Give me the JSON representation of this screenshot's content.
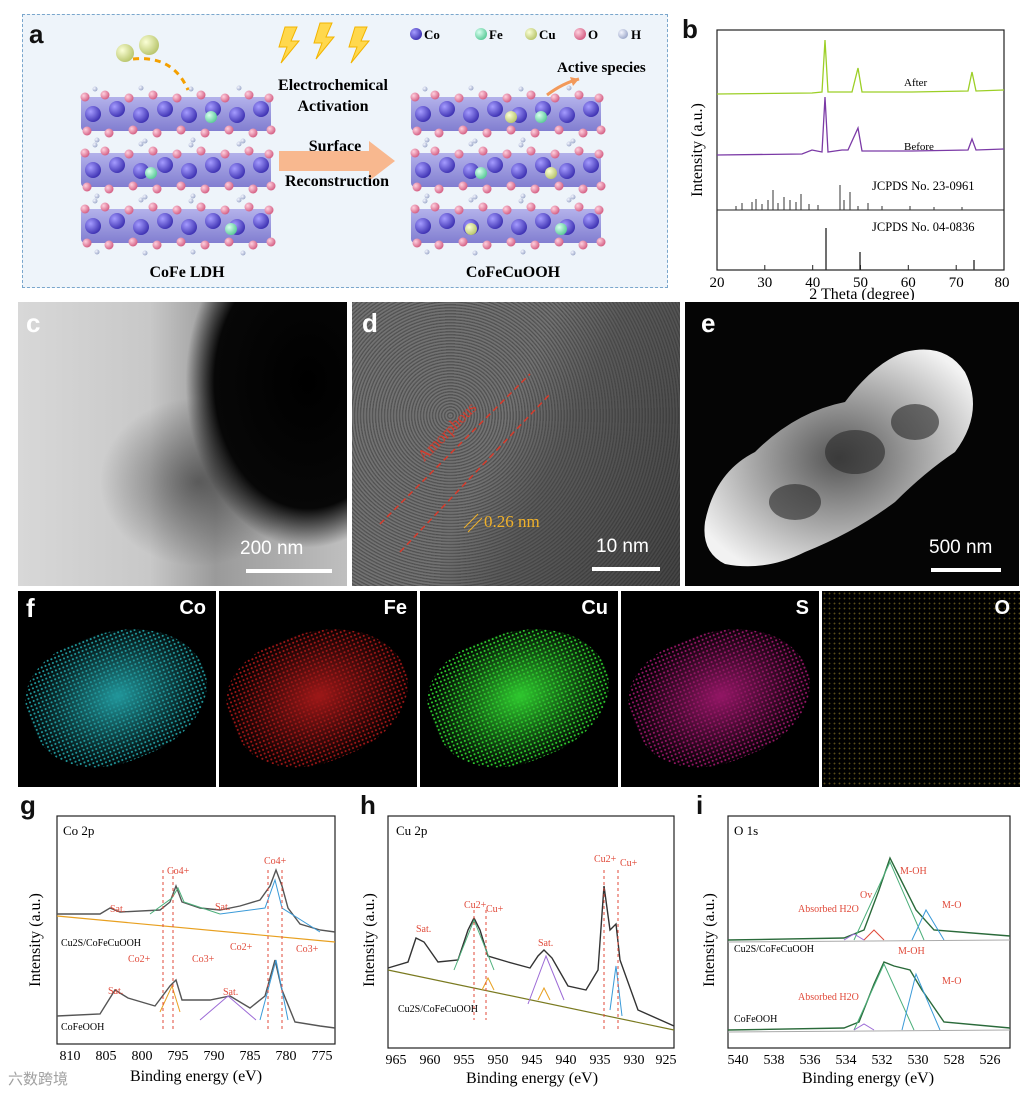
{
  "panel_labels": {
    "a": "a",
    "b": "b",
    "c": "c",
    "d": "d",
    "e": "e",
    "f": "f",
    "g": "g",
    "h": "h",
    "i": "i"
  },
  "panel_a": {
    "legend": [
      "Co",
      "Fe",
      "Cu",
      "O",
      "H"
    ],
    "legend_colors": [
      "#5a4fd6",
      "#7fe6b8",
      "#d9e59a",
      "#e88aa8",
      "#b8c4e0"
    ],
    "activation": "Electrochemical\nActivation",
    "surface": "Surface",
    "reconstruction": "Reconstruction",
    "active_species": "Active species",
    "left_name": "CoFe LDH",
    "right_name": "CoFeCuOOH"
  },
  "panel_b": {
    "ylabel": "Intensity (a.u.)",
    "xlabel": "2 Theta (degree)",
    "after": "After",
    "before": "Before",
    "ref1": "JCPDS No. 23-0961",
    "ref2": "JCPDS No. 04-0836",
    "xticks": [
      "20",
      "30",
      "40",
      "50",
      "60",
      "70",
      "80"
    ]
  },
  "panel_c": {
    "scale": "200 nm"
  },
  "panel_d": {
    "amorphous": "Amorphous",
    "spacing": "0.26 nm",
    "scale": "10 nm"
  },
  "panel_e": {
    "scale": "500 nm"
  },
  "panel_f": {
    "maps": [
      {
        "el": "Co",
        "color": "#2fd6dc"
      },
      {
        "el": "Fe",
        "color": "#e02222"
      },
      {
        "el": "Cu",
        "color": "#31d231"
      },
      {
        "el": "S",
        "color": "#d0208f"
      },
      {
        "el": "O",
        "color": "#a08a30"
      }
    ]
  },
  "panel_g": {
    "title": "Co 2p",
    "ylabel": "Intensity (a.u.)",
    "xlabel": "Binding energy (eV)",
    "top_sample": "Cu2S/CoFeCuOOH",
    "bottom_sample": "CoFeOOH",
    "ann": {
      "sat1": "Sat.",
      "sat2": "Sat.",
      "sat3": "Sat.",
      "sat4": "Sat.",
      "co4a": "Co4+",
      "co4b": "Co4+",
      "co2a": "Co2+",
      "co3a": "Co3+",
      "co2b": "Co2+",
      "co3b": "Co3+"
    },
    "xticks": [
      "810",
      "805",
      "800",
      "795",
      "790",
      "785",
      "780",
      "775"
    ]
  },
  "panel_h": {
    "title": "Cu 2p",
    "ylabel": "Intensity (a.u.)",
    "xlabel": "Binding energy (eV)",
    "sample": "Cu2S/CoFeCuOOH",
    "ann": {
      "sat1": "Sat.",
      "sat2": "Sat.",
      "cu2a": "Cu2+",
      "cua": "Cu+",
      "cu2b": "Cu2+",
      "cub": "Cu+"
    },
    "xticks": [
      "965",
      "960",
      "955",
      "950",
      "945",
      "940",
      "935",
      "930",
      "925"
    ]
  },
  "panel_i": {
    "title": "O 1s",
    "ylabel": "Intensity (a.u.)",
    "xlabel": "Binding energy (eV)",
    "top_sample": "Cu2S/CoFeCuOOH",
    "bottom_sample": "CoFeOOH",
    "ann": {
      "moh1": "M-OH",
      "mo1": "M-O",
      "ov": "Ov",
      "abs1": "Absorbed H2O",
      "moh2": "M-OH",
      "mo2": "M-O",
      "abs2": "Absorbed H2O"
    },
    "xticks": [
      "540",
      "538",
      "536",
      "534",
      "532",
      "530",
      "528",
      "526"
    ]
  },
  "watermark": "六数跨境"
}
